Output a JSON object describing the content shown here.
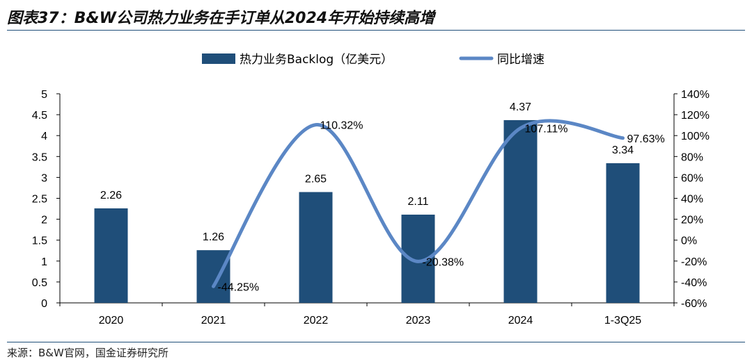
{
  "title": "图表37：B&W公司热力业务在手订单从2024年开始持续高增",
  "source": "来源：B&W官网，国金证券研究所",
  "chart_data": {
    "type": "bar",
    "categories": [
      "2020",
      "2021",
      "2022",
      "2023",
      "2024",
      "1-3Q25"
    ],
    "series": [
      {
        "name": "热力业务Backlog（亿美元）",
        "type": "bar",
        "axis": "left",
        "color": "#1f4e79",
        "values": [
          2.26,
          1.26,
          2.65,
          2.11,
          4.37,
          3.34
        ],
        "labels": [
          "2.26",
          "1.26",
          "2.65",
          "2.11",
          "4.37",
          "3.34"
        ]
      },
      {
        "name": "同比增速",
        "type": "line",
        "axis": "right",
        "color": "#5b87c5",
        "values": [
          null,
          -44.25,
          110.32,
          -20.38,
          107.11,
          97.63
        ],
        "labels": [
          "",
          "-44.25%",
          "110.32%",
          "-20.38%",
          "107.11%",
          "97.63%"
        ]
      }
    ],
    "y_left": {
      "min": 0,
      "max": 5,
      "ticks": [
        "0",
        "0.5",
        "1",
        "1.5",
        "2",
        "2.5",
        "3",
        "3.5",
        "4",
        "4.5",
        "5"
      ]
    },
    "y_right": {
      "min": -60,
      "max": 140,
      "ticks": [
        "-60%",
        "-40%",
        "-20%",
        "0%",
        "20%",
        "40%",
        "60%",
        "80%",
        "100%",
        "120%",
        "140%"
      ]
    },
    "legend_position": "top-center",
    "grid": false
  }
}
